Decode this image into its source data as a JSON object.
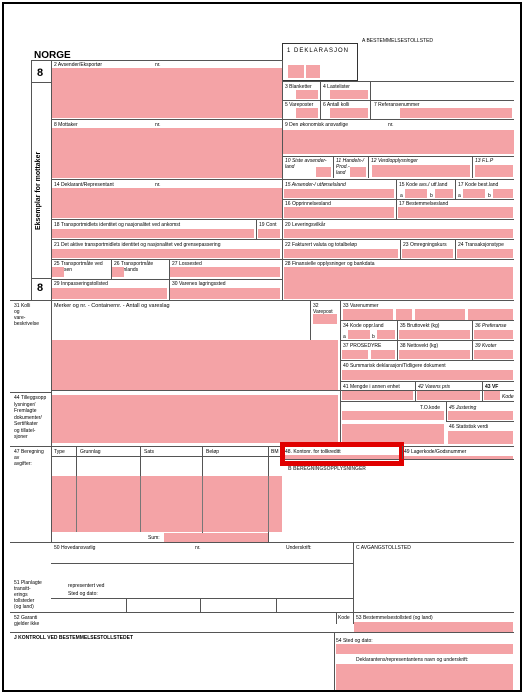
{
  "header": {
    "country": "NORGE",
    "box_a": "A BESTEMMELSESTOLLSTED",
    "copy_number": "8",
    "copy_number_2": "8",
    "side_label": "Eksemplar for mottaker",
    "declaration_title": "1  DEKLARASJON"
  },
  "fields": {
    "f2": "2 Avsender/Eksportør",
    "nr": "nr.",
    "f3": "3 Blanketter",
    "f4": "4 Lastelister",
    "f5": "5 Vareposter",
    "f6": "6 Antall kolli",
    "f7": "7 Referansenummer",
    "f8": "8 Mottaker",
    "f9": "9 Den økonomisk ansvarlige",
    "f10": "10 Siste avsender-\n      land",
    "f11": "11 Handels-/\n      Prod.-\n      land",
    "f12": "12 Verdiopplysninger",
    "f13": "13 F.L.P",
    "f14": "14 Deklarant/Representant",
    "f15": "15 Avsender-/ utførselsland",
    "f15a": "15 Kode avs./ utf.land",
    "f17a": "17 Kode best.land",
    "f15_a": "a",
    "f15_b": "b",
    "f17_a": "a",
    "f17_b": "b",
    "f16": "16 Opprinnelsesland",
    "f17": "17 Bestemmelsesland",
    "f18": "18 Transportmidlets identitet og nasjonalitet ved ankomst",
    "f19": "19 Cont",
    "f20": "20 Leveringsvilkår",
    "f21": "21 Det aktive transportmidlets identitet og nasjonalitet ved grensepassering",
    "f22": "22 Fakturert valuta og totalbeløp",
    "f23": "23 Omregningskurs",
    "f24": "24 Transaksjonstype",
    "f25": "25 Transportmåte ved\n      grensen",
    "f26": "26 Transportmåte\n      innenlands",
    "f27": "27 Lossested",
    "f28": "28 Finansielle opplysninger og bankdata",
    "f29": "29 Innpasseringstollsted",
    "f30": "30 Varenes lagringssted",
    "f31": "31 Kolli\nog\nvare-\nbeskrivelse",
    "f31_text": "Merker og nr. - Containernr. - Antall og vareslag",
    "f32": "32 Varepost\n    nr.",
    "f33": "33 Varenummer",
    "f34": "34 Kode oppr.land",
    "f34_a": "a",
    "f34_b": "b",
    "f35": "35 Bruttovekt (kg)",
    "f36": "36 Preferanse",
    "f37": "37  PROSEDYRE",
    "f38": "38 Nettovekt (kg)",
    "f39": "39 Kvoter",
    "f40": "40 Summarisk deklarasjon/Tidligere dokument",
    "f41": "41 Mengde i annen enhet",
    "f42": "42 Varens pris",
    "f43": "43  VF",
    "f43_kode": "Kode",
    "f44": "44 Tilleggsopp\nlysninger/\nFremlagte\ndokumenter/\nSertifikater\nog tillatel-\nsjoner",
    "tokode": "T.O.kode",
    "f45": "45 Justering",
    "f46": "46 Statistisk verdi",
    "f47": "47 Beregning\nav\navgifter:",
    "col_type": "Type",
    "col_grunnlag": "Grunnlag",
    "col_sats": "Sats",
    "col_belop": "Beløp",
    "col_bm": "BM",
    "sum": "Sum:",
    "f48": "48. Kontonr. for tollkreditt",
    "f49": "49 Lagerkode/Godsnummer",
    "f_b": "B BEREGNINGSOPPLYSNINGER",
    "f50": "50 Hovedansvarlig",
    "f50_nr": "nr.",
    "f50_underskrift": "Underskrift:",
    "f_c": "C AVGANGSTOLLSTED",
    "f50_rep": "representert ved",
    "f50_sted": "Sted og dato:",
    "f51": "51 Planlagte\ntransitt-\nerings\ntollsteder\n(og land)",
    "f52": "52 Garanti\ngjelder ikke",
    "f52_kode": "Kode",
    "f53": "53 Bestemmelsestollsted (og land)",
    "f_j": "J   KONTROLL VED BESTEMMELSESTOLLSTEDET",
    "f54": "54 Sted og dato:",
    "f54_sig": "Deklarantens/representantens navn og underskrift:"
  },
  "colors": {
    "field_fill": "#f4a3a6",
    "highlight": "#e00000"
  }
}
